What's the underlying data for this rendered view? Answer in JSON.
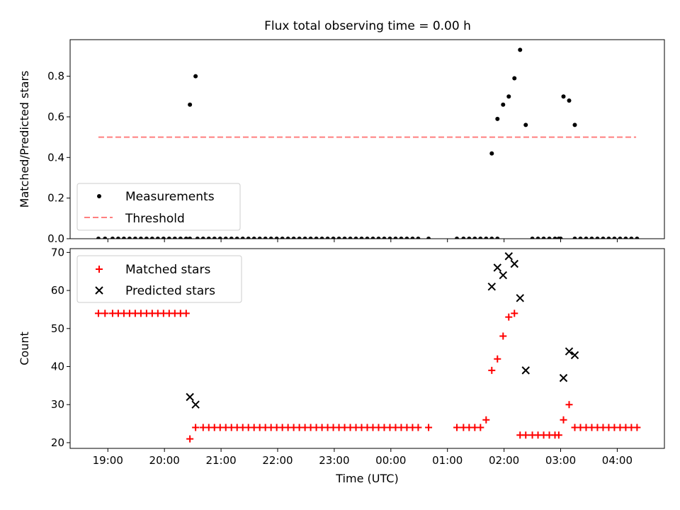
{
  "title": "Flux total observing time = 0.00 h",
  "colors": {
    "measurement": "#000000",
    "threshold": "#ff7f7f",
    "matched": "#ff0000",
    "predicted": "#000000"
  },
  "chart_data": [
    {
      "type": "scatter",
      "ylabel": "Matched/Predicted stars",
      "xlabel": "",
      "ylim": [
        0,
        0.98
      ],
      "yticks": [
        0.0,
        0.2,
        0.4,
        0.6,
        0.8
      ],
      "ytick_labels": [
        "0.0",
        "0.2",
        "0.4",
        "0.6",
        "0.8"
      ],
      "legend": {
        "position": "lower-left",
        "entries": [
          "Measurements",
          "Threshold"
        ]
      },
      "threshold": {
        "value": 0.5,
        "x_start": "18:50",
        "x_end": "04:20"
      },
      "series": [
        {
          "name": "Measurements",
          "marker": "dot",
          "x": [
            "18:50",
            "18:57",
            "19:05",
            "19:11",
            "19:17",
            "19:23",
            "19:29",
            "19:35",
            "19:41",
            "19:47",
            "19:53",
            "19:59",
            "20:05",
            "20:11",
            "20:17",
            "20:23",
            "20:27",
            "20:35",
            "20:41",
            "20:47",
            "20:53",
            "20:59",
            "21:05",
            "21:11",
            "21:17",
            "21:23",
            "21:29",
            "21:35",
            "21:41",
            "21:47",
            "21:53",
            "21:59",
            "22:05",
            "22:11",
            "22:17",
            "22:23",
            "22:29",
            "22:35",
            "22:41",
            "22:47",
            "22:53",
            "22:59",
            "23:05",
            "23:11",
            "23:17",
            "23:23",
            "23:29",
            "23:35",
            "23:41",
            "23:47",
            "23:53",
            "23:59",
            "00:05",
            "00:11",
            "00:17",
            "00:23",
            "00:29",
            "00:40",
            "01:10",
            "01:17",
            "01:23",
            "01:29",
            "01:35",
            "01:41",
            "01:47",
            "01:53",
            "02:30",
            "02:36",
            "02:42",
            "02:48",
            "02:54",
            "02:58",
            "03:00",
            "03:15",
            "03:21",
            "03:27",
            "03:33",
            "03:39",
            "03:45",
            "03:51",
            "03:57",
            "04:03",
            "04:09",
            "04:15",
            "04:21",
            "20:27",
            "20:33",
            "01:47",
            "01:53",
            "01:59",
            "02:05",
            "02:11",
            "02:17",
            "02:23",
            "03:03",
            "03:09",
            "03:15"
          ],
          "y": [
            0,
            0,
            0,
            0,
            0,
            0,
            0,
            0,
            0,
            0,
            0,
            0,
            0,
            0,
            0,
            0,
            0,
            0,
            0,
            0,
            0,
            0,
            0,
            0,
            0,
            0,
            0,
            0,
            0,
            0,
            0,
            0,
            0,
            0,
            0,
            0,
            0,
            0,
            0,
            0,
            0,
            0,
            0,
            0,
            0,
            0,
            0,
            0,
            0,
            0,
            0,
            0,
            0,
            0,
            0,
            0,
            0,
            0,
            0,
            0,
            0,
            0,
            0,
            0,
            0,
            0,
            0,
            0,
            0,
            0,
            0,
            0,
            0,
            0,
            0,
            0,
            0,
            0,
            0,
            0,
            0,
            0,
            0,
            0,
            0,
            0.66,
            0.8,
            0.42,
            0.59,
            0.66,
            0.7,
            0.79,
            0.93,
            0.56,
            0.7,
            0.68,
            0.56
          ]
        }
      ]
    },
    {
      "type": "scatter",
      "ylabel": "Count",
      "xlabel": "Time (UTC)",
      "ylim": [
        18.5,
        71
      ],
      "yticks": [
        20,
        30,
        40,
        50,
        60,
        70
      ],
      "ytick_labels": [
        "20",
        "30",
        "40",
        "50",
        "60",
        "70"
      ],
      "x_range": [
        "18:20",
        "04:50"
      ],
      "xticks": [
        "19:00",
        "20:00",
        "21:00",
        "22:00",
        "23:00",
        "00:00",
        "01:00",
        "02:00",
        "03:00",
        "04:00"
      ],
      "legend": {
        "position": "upper-left",
        "entries": [
          "Matched stars",
          "Predicted stars"
        ]
      },
      "series": [
        {
          "name": "Matched stars",
          "marker": "plus",
          "x": [
            "18:50",
            "18:57",
            "19:05",
            "19:11",
            "19:17",
            "19:23",
            "19:29",
            "19:35",
            "19:41",
            "19:47",
            "19:53",
            "19:59",
            "20:05",
            "20:11",
            "20:17",
            "20:23",
            "20:27",
            "20:33",
            "20:41",
            "20:47",
            "20:53",
            "20:59",
            "21:05",
            "21:11",
            "21:17",
            "21:23",
            "21:29",
            "21:35",
            "21:41",
            "21:47",
            "21:53",
            "21:59",
            "22:05",
            "22:11",
            "22:17",
            "22:23",
            "22:29",
            "22:35",
            "22:41",
            "22:47",
            "22:53",
            "22:59",
            "23:05",
            "23:11",
            "23:17",
            "23:23",
            "23:29",
            "23:35",
            "23:41",
            "23:47",
            "23:53",
            "23:59",
            "00:05",
            "00:11",
            "00:17",
            "00:23",
            "00:29",
            "00:40",
            "01:10",
            "01:17",
            "01:23",
            "01:29",
            "01:35",
            "01:41",
            "01:47",
            "01:53",
            "01:59",
            "02:05",
            "02:11",
            "02:17",
            "02:23",
            "02:30",
            "02:36",
            "02:42",
            "02:48",
            "02:54",
            "02:58",
            "03:03",
            "03:09",
            "03:15",
            "03:21",
            "03:27",
            "03:33",
            "03:39",
            "03:45",
            "03:51",
            "03:57",
            "04:03",
            "04:09",
            "04:15",
            "04:21"
          ],
          "y": [
            54,
            54,
            54,
            54,
            54,
            54,
            54,
            54,
            54,
            54,
            54,
            54,
            54,
            54,
            54,
            54,
            21,
            24,
            24,
            24,
            24,
            24,
            24,
            24,
            24,
            24,
            24,
            24,
            24,
            24,
            24,
            24,
            24,
            24,
            24,
            24,
            24,
            24,
            24,
            24,
            24,
            24,
            24,
            24,
            24,
            24,
            24,
            24,
            24,
            24,
            24,
            24,
            24,
            24,
            24,
            24,
            24,
            24,
            24,
            24,
            24,
            24,
            24,
            26,
            39,
            42,
            48,
            53,
            54,
            22,
            22,
            22,
            22,
            22,
            22,
            22,
            22,
            26,
            30,
            24,
            24,
            24,
            24,
            24,
            24,
            24,
            24,
            24,
            24,
            24,
            24
          ]
        },
        {
          "name": "Predicted stars",
          "marker": "x",
          "x": [
            "20:27",
            "20:33",
            "01:47",
            "01:53",
            "01:59",
            "02:05",
            "02:11",
            "02:17",
            "02:23",
            "03:03",
            "03:09",
            "03:15"
          ],
          "y": [
            32,
            30,
            61,
            66,
            64,
            69,
            67,
            58,
            39,
            37,
            44,
            43
          ]
        }
      ]
    }
  ]
}
